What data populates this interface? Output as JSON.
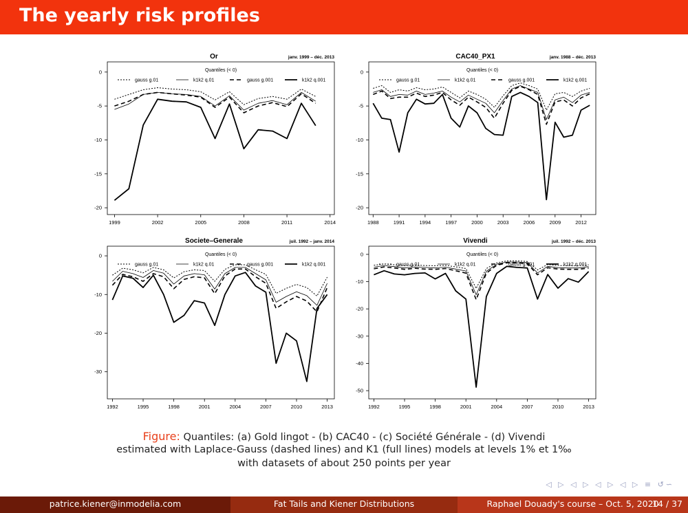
{
  "slide": {
    "title": "The yearly risk profiles"
  },
  "legend": {
    "title": "Quantiles (< 0)",
    "items": [
      "gauss g.01",
      "k1k2 q.01",
      "gauss g.001",
      "k1k2 q.001"
    ]
  },
  "caption": {
    "label": "Figure:",
    "line1": "Quantiles: (a) Gold lingot  -  (b) CAC40  -  (c) Société Générale  -  (d) Vivendi",
    "line2": "estimated with Laplace-Gauss (dashed lines) and K1 (full lines) models at levels 1% et 1‰",
    "line3": "with datasets of about 250 points per year"
  },
  "footer": {
    "email": "patrice.kiener@inmodelia.com",
    "talk": "Fat Tails and Kiener Distributions",
    "course": "Raphael Douady's course – Oct. 5, 2020",
    "page": "14 / 37"
  },
  "nav": {
    "symbols": "◁ ▷ ◁ ▷ ◁ ▷ ◁ ▷ ≡ ↺∽"
  },
  "colors": {
    "header": "#f2330d",
    "line": "#000000"
  },
  "chart_data": [
    {
      "type": "line",
      "title": "Or",
      "subtitle": "janv. 1999 – déc. 2013",
      "x": [
        1999,
        2000,
        2001,
        2002,
        2003,
        2004,
        2005,
        2006,
        2007,
        2008,
        2009,
        2010,
        2011,
        2012,
        2013
      ],
      "xlim": [
        1998.5,
        2014.3
      ],
      "ylim": [
        -21,
        1.5
      ],
      "xticks": [
        1999,
        2002,
        2005,
        2008,
        2011,
        2014
      ],
      "yticks": [
        0,
        -5,
        -10,
        -15,
        -20
      ],
      "series": [
        {
          "name": "gauss g.01",
          "values": [
            -4,
            -3.3,
            -2.6,
            -2.3,
            -2.5,
            -2.6,
            -2.9,
            -4.1,
            -2.9,
            -4.8,
            -3.9,
            -3.6,
            -4.0,
            -2.5,
            -3.6
          ]
        },
        {
          "name": "k1k2 q.01",
          "values": [
            -5.5,
            -4.7,
            -3.3,
            -3.0,
            -3.2,
            -3.3,
            -3.6,
            -5.0,
            -3.5,
            -5.6,
            -4.6,
            -4.2,
            -4.8,
            -3.0,
            -4.3
          ]
        },
        {
          "name": "gauss g.001",
          "values": [
            -5.0,
            -4.3,
            -3.3,
            -3.0,
            -3.2,
            -3.4,
            -3.7,
            -5.2,
            -3.7,
            -6.0,
            -5.0,
            -4.5,
            -5.1,
            -3.2,
            -4.6
          ]
        },
        {
          "name": "k1k2 q.001",
          "values": [
            -18.9,
            -17.2,
            -7.8,
            -4.0,
            -4.3,
            -4.4,
            -5.2,
            -9.8,
            -4.7,
            -11.3,
            -8.5,
            -8.7,
            -9.8,
            -4.6,
            -7.9
          ]
        }
      ]
    },
    {
      "type": "line",
      "title": "CAC40_PX1",
      "subtitle": "janv. 1988 – déc. 2013",
      "x": [
        1988,
        1989,
        1990,
        1991,
        1992,
        1993,
        1994,
        1995,
        1996,
        1997,
        1998,
        1999,
        2000,
        2001,
        2002,
        2003,
        2004,
        2005,
        2006,
        2007,
        2008,
        2009,
        2010,
        2011,
        2012,
        2013
      ],
      "xlim": [
        1987.5,
        2013.7
      ],
      "ylim": [
        -21,
        1.5
      ],
      "xticks": [
        1988,
        1991,
        1994,
        1997,
        2000,
        2003,
        2006,
        2009,
        2012
      ],
      "yticks": [
        0,
        -5,
        -10,
        -15,
        -20
      ],
      "series": [
        {
          "name": "gauss g.01",
          "values": [
            -2.4,
            -2.0,
            -3.0,
            -2.6,
            -2.8,
            -2.3,
            -2.6,
            -2.5,
            -2.2,
            -3.0,
            -3.8,
            -2.8,
            -3.3,
            -4.0,
            -5.2,
            -3.5,
            -2.0,
            -1.6,
            -2.0,
            -2.5,
            -5.6,
            -3.2,
            -3.0,
            -3.6,
            -2.8,
            -2.4
          ]
        },
        {
          "name": "k1k2 q.01",
          "values": [
            -3.0,
            -2.6,
            -3.6,
            -3.3,
            -3.4,
            -2.8,
            -3.3,
            -3.1,
            -2.8,
            -3.7,
            -4.4,
            -3.4,
            -4.0,
            -4.6,
            -6.0,
            -4.2,
            -2.5,
            -2.0,
            -2.5,
            -3.0,
            -7.0,
            -4.1,
            -3.7,
            -4.5,
            -3.4,
            -3.0
          ]
        },
        {
          "name": "gauss g.001",
          "values": [
            -3.3,
            -2.8,
            -3.9,
            -3.7,
            -3.7,
            -3.1,
            -3.6,
            -3.4,
            -3.0,
            -4.1,
            -4.9,
            -3.7,
            -4.4,
            -5.2,
            -6.8,
            -4.6,
            -2.7,
            -2.1,
            -2.6,
            -3.3,
            -7.7,
            -4.4,
            -4.1,
            -5.0,
            -3.8,
            -3.2
          ]
        },
        {
          "name": "k1k2 q.001",
          "values": [
            -4.6,
            -6.8,
            -7.0,
            -11.8,
            -6.0,
            -4.0,
            -4.7,
            -4.6,
            -3.3,
            -6.8,
            -8.1,
            -5.0,
            -6.0,
            -8.3,
            -9.2,
            -9.3,
            -3.6,
            -3.0,
            -3.6,
            -4.5,
            -18.8,
            -7.4,
            -9.6,
            -9.3,
            -5.6,
            -4.9
          ]
        }
      ]
    },
    {
      "type": "line",
      "title": "Societe–Generale",
      "subtitle": "juil. 1992 – janv. 2014",
      "x": [
        1992,
        1993,
        1994,
        1995,
        1996,
        1997,
        1998,
        1999,
        2000,
        2001,
        2002,
        2003,
        2004,
        2005,
        2006,
        2007,
        2008,
        2009,
        2010,
        2011,
        2012,
        2013
      ],
      "xlim": [
        1991.5,
        2013.7
      ],
      "ylim": [
        -37,
        2.5
      ],
      "xticks": [
        1992,
        1995,
        1998,
        2001,
        2004,
        2007,
        2010,
        2013
      ],
      "yticks": [
        0,
        -10,
        -20,
        -30
      ],
      "series": [
        {
          "name": "gauss g.01",
          "values": [
            -5.0,
            -3.2,
            -3.6,
            -4.4,
            -3.0,
            -3.6,
            -5.7,
            -4.1,
            -3.6,
            -3.8,
            -6.6,
            -3.5,
            -2.3,
            -2.3,
            -3.6,
            -4.8,
            -9.7,
            -8.4,
            -7.4,
            -8.2,
            -10.4,
            -5.5
          ]
        },
        {
          "name": "k1k2 q.01",
          "values": [
            -6.6,
            -4.0,
            -4.6,
            -5.6,
            -3.8,
            -4.5,
            -7.3,
            -5.2,
            -4.6,
            -4.9,
            -8.6,
            -4.6,
            -3.0,
            -3.0,
            -4.6,
            -6.2,
            -12.0,
            -10.5,
            -9.3,
            -10.3,
            -12.8,
            -7.1
          ]
        },
        {
          "name": "gauss g.001",
          "values": [
            -7.6,
            -4.8,
            -5.4,
            -6.6,
            -4.6,
            -5.4,
            -8.5,
            -6.1,
            -5.4,
            -5.7,
            -9.8,
            -5.2,
            -3.4,
            -3.4,
            -5.4,
            -7.1,
            -13.6,
            -11.9,
            -10.5,
            -11.7,
            -14.5,
            -8.2
          ]
        },
        {
          "name": "k1k2 q.001",
          "values": [
            -11.4,
            -5.2,
            -5.8,
            -8.2,
            -5.0,
            -10.0,
            -17.2,
            -15.4,
            -11.6,
            -12.2,
            -18.0,
            -10.0,
            -5.2,
            -4.3,
            -7.8,
            -9.4,
            -27.8,
            -20.0,
            -22.0,
            -32.5,
            -13.6,
            -10.0
          ]
        }
      ]
    },
    {
      "type": "line",
      "title": "Vivendi",
      "subtitle": "juil. 1992 – déc. 2013",
      "x": [
        1992,
        1993,
        1994,
        1995,
        1996,
        1997,
        1998,
        1999,
        2000,
        2001,
        2002,
        2003,
        2004,
        2005,
        2006,
        2007,
        2008,
        2009,
        2010,
        2011,
        2012,
        2013
      ],
      "xlim": [
        1991.5,
        2013.7
      ],
      "ylim": [
        -53,
        3
      ],
      "xticks": [
        1992,
        1995,
        1998,
        2001,
        2004,
        2007,
        2010,
        2013
      ],
      "yticks": [
        0,
        -10,
        -20,
        -30,
        -40,
        -50
      ],
      "series": [
        {
          "name": "gauss g.01",
          "values": [
            -4.0,
            -3.5,
            -3.8,
            -4.2,
            -3.9,
            -4.1,
            -4.2,
            -4.0,
            -4.6,
            -5.2,
            -12.5,
            -5.2,
            -3.1,
            -2.4,
            -2.4,
            -2.6,
            -5.7,
            -3.7,
            -4.1,
            -4.2,
            -4.2,
            -3.8
          ]
        },
        {
          "name": "k1k2 q.01",
          "values": [
            -4.7,
            -4.1,
            -4.5,
            -5.0,
            -4.6,
            -4.8,
            -5.0,
            -4.7,
            -5.4,
            -6.1,
            -14.8,
            -6.2,
            -3.6,
            -2.8,
            -2.8,
            -3.0,
            -6.8,
            -4.4,
            -4.9,
            -5.0,
            -5.0,
            -4.5
          ]
        },
        {
          "name": "gauss g.001",
          "values": [
            -5.3,
            -4.6,
            -5.0,
            -5.5,
            -5.1,
            -5.4,
            -5.5,
            -5.2,
            -6.0,
            -6.9,
            -16.6,
            -6.9,
            -4.0,
            -3.1,
            -3.1,
            -3.4,
            -7.5,
            -4.9,
            -5.4,
            -5.5,
            -5.5,
            -5.0
          ]
        },
        {
          "name": "k1k2 q.001",
          "values": [
            -7.5,
            -6.0,
            -7.2,
            -7.5,
            -7.0,
            -6.8,
            -9.0,
            -7.0,
            -13.4,
            -16.4,
            -48.7,
            -15.5,
            -7.0,
            -4.4,
            -4.8,
            -5.0,
            -16.4,
            -7.4,
            -12.4,
            -8.9,
            -10.2,
            -6.3
          ]
        }
      ]
    }
  ]
}
